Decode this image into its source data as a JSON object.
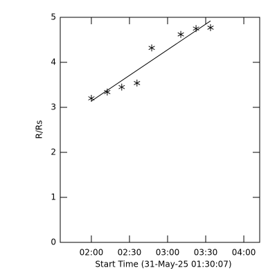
{
  "chart_data": {
    "type": "scatter",
    "x_label": "Start Time (31-May-25 01:30:07)",
    "y_label": "R/Rs",
    "x": [
      120,
      132.5,
      143.9,
      155.9,
      167.5,
      190.4,
      202.4,
      213.8
    ],
    "values": [
      3.2,
      3.34,
      3.45,
      3.54,
      4.32,
      4.62,
      4.75,
      4.77
    ],
    "fit": {
      "x": [
        120,
        213.8
      ],
      "values": [
        3.14,
        4.92
      ]
    },
    "color": "#000000",
    "xlim": [
      95.5,
      252.5
    ],
    "xticks": [
      {
        "value": 120,
        "label": "02:00"
      },
      {
        "value": 150,
        "label": "02:30"
      },
      {
        "value": 180,
        "label": "03:00"
      },
      {
        "value": 210,
        "label": "03:30"
      },
      {
        "value": 240,
        "label": "04:00"
      }
    ],
    "ylim": [
      0,
      5
    ],
    "yticks": [
      0,
      1,
      2,
      3,
      4,
      5
    ]
  }
}
